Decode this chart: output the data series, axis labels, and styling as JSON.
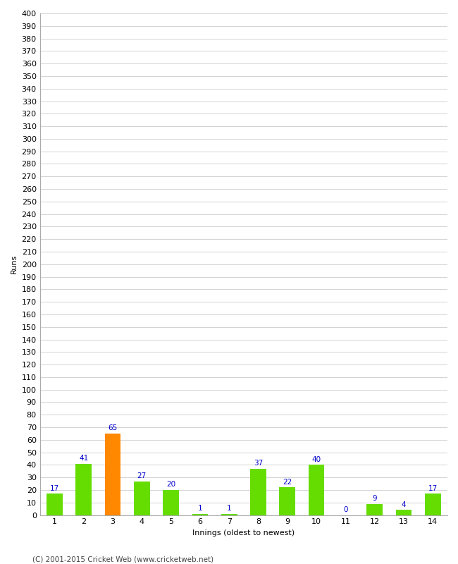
{
  "xlabel": "Innings (oldest to newest)",
  "ylabel": "Runs",
  "categories": [
    1,
    2,
    3,
    4,
    5,
    6,
    7,
    8,
    9,
    10,
    11,
    12,
    13,
    14
  ],
  "values": [
    17,
    41,
    65,
    27,
    20,
    1,
    1,
    37,
    22,
    40,
    0,
    9,
    4,
    17
  ],
  "bar_colors": [
    "#66dd00",
    "#66dd00",
    "#ff8800",
    "#66dd00",
    "#66dd00",
    "#66dd00",
    "#66dd00",
    "#66dd00",
    "#66dd00",
    "#66dd00",
    "#66dd00",
    "#66dd00",
    "#66dd00",
    "#66dd00"
  ],
  "ylim": [
    0,
    400
  ],
  "yticks": [
    0,
    10,
    20,
    30,
    40,
    50,
    60,
    70,
    80,
    90,
    100,
    110,
    120,
    130,
    140,
    150,
    160,
    170,
    180,
    190,
    200,
    210,
    220,
    230,
    240,
    250,
    260,
    270,
    280,
    290,
    300,
    310,
    320,
    330,
    340,
    350,
    360,
    370,
    380,
    390,
    400
  ],
  "label_color": "#0000cc",
  "label_fontsize": 7.5,
  "axis_tick_fontsize": 8,
  "axis_label_fontsize": 8,
  "background_color": "#ffffff",
  "grid_color": "#cccccc",
  "footer": "(C) 2001-2015 Cricket Web (www.cricketweb.net)",
  "footer_fontsize": 7.5,
  "bar_width": 0.55
}
